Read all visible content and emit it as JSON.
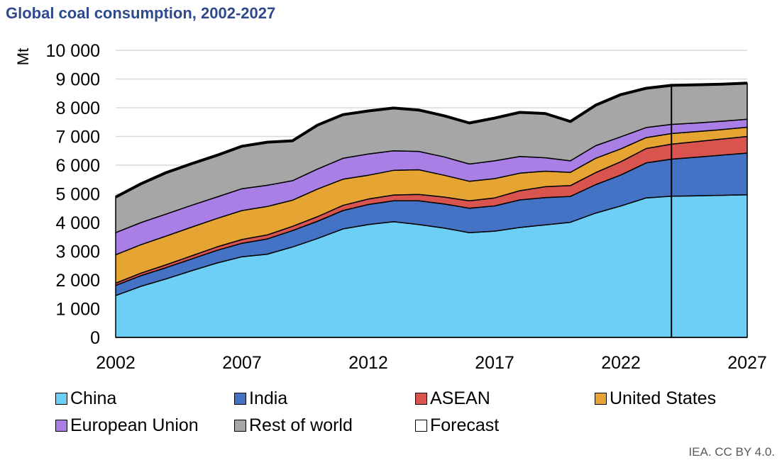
{
  "title": "Global coal consumption, 2002-2027",
  "source": "IEA. CC BY 4.0.",
  "chart_data": {
    "type": "area",
    "stacked": true,
    "ylabel": "Mt",
    "ylim": [
      0,
      10000
    ],
    "yticks": [
      0,
      1000,
      2000,
      3000,
      4000,
      5000,
      6000,
      7000,
      8000,
      9000,
      10000
    ],
    "ytick_labels": [
      "0",
      "1 000",
      "2 000",
      "3 000",
      "4 000",
      "5 000",
      "6 000",
      "7 000",
      "8 000",
      "9 000",
      "10 000"
    ],
    "xlim": [
      2002,
      2027
    ],
    "xticks": [
      2002,
      2007,
      2012,
      2017,
      2022,
      2027
    ],
    "xtick_labels": [
      "2002",
      "2007",
      "2012",
      "2017",
      "2022",
      "2027"
    ],
    "forecast_start": 2024,
    "grid": "horizontal",
    "legend_position": "bottom",
    "x": [
      2002,
      2003,
      2004,
      2005,
      2006,
      2007,
      2008,
      2009,
      2010,
      2011,
      2012,
      2013,
      2014,
      2015,
      2016,
      2017,
      2018,
      2019,
      2020,
      2021,
      2022,
      2023,
      2024,
      2025,
      2026,
      2027
    ],
    "series": [
      {
        "name": "China",
        "color": "#6dcff6",
        "values": [
          1460,
          1780,
          2040,
          2320,
          2590,
          2810,
          2900,
          3150,
          3450,
          3780,
          3930,
          4030,
          3930,
          3810,
          3650,
          3700,
          3830,
          3920,
          4010,
          4330,
          4580,
          4860,
          4920,
          4930,
          4950,
          4970
        ]
      },
      {
        "name": "India",
        "color": "#4472c4",
        "values": [
          350,
          370,
          390,
          410,
          440,
          470,
          530,
          570,
          600,
          640,
          700,
          730,
          830,
          840,
          850,
          880,
          960,
          950,
          900,
          990,
          1080,
          1220,
          1290,
          1350,
          1400,
          1450
        ]
      },
      {
        "name": "ASEAN",
        "color": "#d9534f",
        "values": [
          80,
          90,
          100,
          110,
          120,
          130,
          140,
          150,
          160,
          180,
          190,
          200,
          220,
          240,
          260,
          280,
          320,
          380,
          380,
          420,
          460,
          500,
          520,
          540,
          560,
          580
        ]
      },
      {
        "name": "United States",
        "color": "#e6a532",
        "values": [
          990,
          990,
          1000,
          1000,
          990,
          1010,
          990,
          910,
          960,
          910,
          830,
          860,
          860,
          760,
          680,
          670,
          610,
          540,
          460,
          500,
          450,
          380,
          370,
          350,
          330,
          320
        ]
      },
      {
        "name": "European Union",
        "color": "#a97fe6",
        "values": [
          770,
          770,
          770,
          760,
          750,
          760,
          740,
          680,
          700,
          730,
          740,
          680,
          640,
          640,
          600,
          620,
          580,
          470,
          400,
          440,
          420,
          350,
          320,
          300,
          290,
          280
        ]
      },
      {
        "name": "Rest of world",
        "color": "#a6a6a6",
        "values": [
          1240,
          1350,
          1440,
          1450,
          1450,
          1480,
          1500,
          1390,
          1530,
          1520,
          1500,
          1490,
          1440,
          1430,
          1430,
          1490,
          1540,
          1540,
          1370,
          1410,
          1470,
          1370,
          1360,
          1330,
          1290,
          1260
        ]
      }
    ],
    "legend": [
      "China",
      "India",
      "ASEAN",
      "United States",
      "European Union",
      "Rest of world",
      "Forecast"
    ]
  }
}
